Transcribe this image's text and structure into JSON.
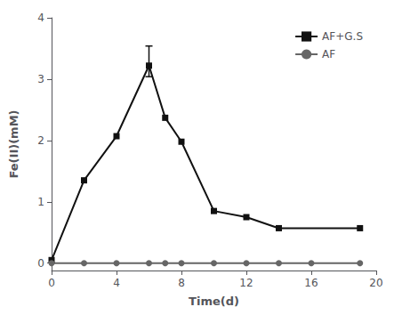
{
  "chart_data": {
    "type": "line",
    "xlabel": "Time(d)",
    "ylabel": "Fe(II)(mM)",
    "xlim": [
      0,
      20
    ],
    "ylim": [
      -0.12,
      4.0
    ],
    "xticks": [
      0,
      4,
      8,
      12,
      16,
      20
    ],
    "yticks": [
      0,
      1,
      2,
      3,
      4
    ],
    "grid": false,
    "legend": "upper right",
    "series": [
      {
        "name": "AF+G.S",
        "color": "#111111",
        "marker": "square",
        "x": [
          0,
          2,
          4,
          6,
          7,
          8,
          10,
          12,
          14,
          19
        ],
        "values": [
          0.05,
          1.35,
          2.07,
          3.22,
          2.37,
          1.98,
          0.85,
          0.75,
          0.57,
          0.57
        ],
        "error_upper": [
          0,
          0,
          0,
          0.32,
          0,
          0,
          0,
          0,
          0,
          0
        ],
        "error_lower": [
          0,
          0,
          0,
          0.18,
          0,
          0,
          0,
          0,
          0,
          0
        ]
      },
      {
        "name": "AF",
        "color": "#666666",
        "marker": "circle",
        "x": [
          0,
          2,
          4,
          6,
          7,
          8,
          10,
          12,
          14,
          16,
          19
        ],
        "values": [
          0.0,
          0.0,
          0.0,
          0.0,
          0.0,
          0.0,
          0.0,
          0.0,
          0.0,
          0.0,
          0.0
        ]
      }
    ]
  }
}
